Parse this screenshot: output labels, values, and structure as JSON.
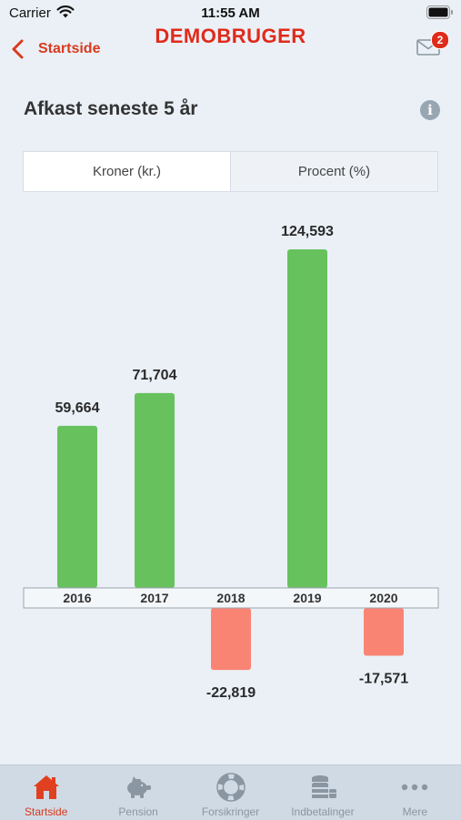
{
  "status_bar": {
    "carrier": "Carrier",
    "time": "11:55 AM"
  },
  "nav": {
    "back_label": "Startside",
    "title": "DEMOBRUGER",
    "mail_badge": "2"
  },
  "header": {
    "title": "Afkast seneste 5 år",
    "info_icon": "i"
  },
  "segments": [
    {
      "label": "Kroner (kr.)",
      "active": true
    },
    {
      "label": "Procent (%)",
      "active": false
    }
  ],
  "chart_data": {
    "type": "bar",
    "categories": [
      "2016",
      "2017",
      "2018",
      "2019",
      "2020"
    ],
    "values": [
      59664,
      71704,
      -22819,
      124593,
      -17571
    ],
    "value_labels": [
      "59,664",
      "71,704",
      "-22,819",
      "124,593",
      "-17,571"
    ],
    "colors": {
      "positive": "#67c25e",
      "negative": "#fa8474"
    }
  },
  "tabs": [
    {
      "label": "Startside",
      "icon": "home-icon",
      "active": true
    },
    {
      "label": "Pension",
      "icon": "piggy-bank-icon",
      "active": false
    },
    {
      "label": "Forsikringer",
      "icon": "lifebuoy-icon",
      "active": false
    },
    {
      "label": "Indbetalinger",
      "icon": "coins-icon",
      "active": false
    },
    {
      "label": "Mere",
      "icon": "more-icon",
      "active": false
    }
  ],
  "colors": {
    "accent": "#e02a1a",
    "background": "#eaf0f6",
    "tab_inactive": "#8a96a1"
  }
}
